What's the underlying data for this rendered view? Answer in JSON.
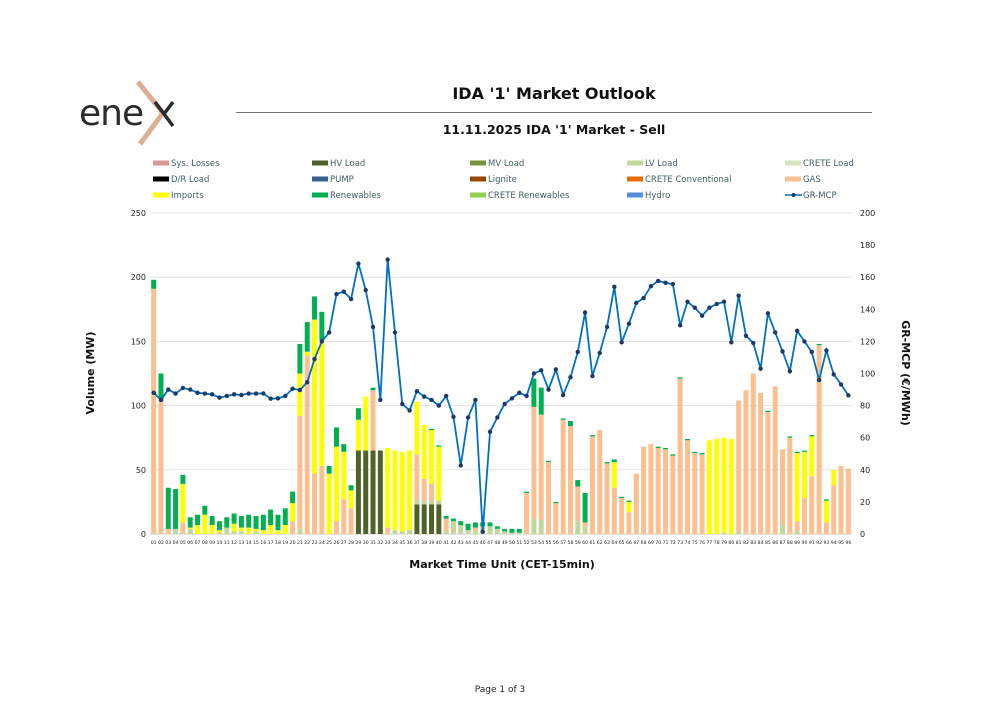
{
  "header": {
    "logo_text": "enex",
    "title": "IDA '1' Market Outlook",
    "subtitle": "11.11.2025  IDA '1' Market - Sell"
  },
  "footer": {
    "page": "Page 1 of 3"
  },
  "chart_data": {
    "type": "bar",
    "stacked": true,
    "xlabel": "Market Time Unit (CET-15min)",
    "ylabel": "Volume (MW)",
    "y2label": "GR-MCP (€/MWh)",
    "ylim": [
      0,
      250
    ],
    "y2lim": [
      0,
      200
    ],
    "yticks": [
      "0",
      "50",
      "100",
      "150",
      "200",
      "250"
    ],
    "y2ticks": [
      "0",
      "20",
      "40",
      "60",
      "80",
      "100",
      "120",
      "140",
      "160",
      "180",
      "200"
    ],
    "grid": true,
    "legend_position": "top",
    "categories": [
      "01",
      "02",
      "03",
      "04",
      "05",
      "06",
      "07",
      "08",
      "09",
      "10",
      "11",
      "12",
      "13",
      "14",
      "15",
      "16",
      "17",
      "18",
      "19",
      "20",
      "21",
      "22",
      "23",
      "24",
      "25",
      "26",
      "27",
      "28",
      "29",
      "30",
      "31",
      "32",
      "33",
      "34",
      "35",
      "36",
      "37",
      "38",
      "39",
      "40",
      "41",
      "42",
      "43",
      "44",
      "45",
      "46",
      "47",
      "48",
      "49",
      "50",
      "51",
      "52",
      "53",
      "54",
      "55",
      "56",
      "57",
      "58",
      "59",
      "60",
      "61",
      "62",
      "63",
      "64",
      "65",
      "66",
      "67",
      "68",
      "69",
      "70",
      "71",
      "72",
      "73",
      "74",
      "75",
      "76",
      "77",
      "78",
      "79",
      "80",
      "81",
      "82",
      "83",
      "84",
      "85",
      "86",
      "87",
      "88",
      "89",
      "90",
      "91",
      "92",
      "93",
      "94",
      "95",
      "96"
    ],
    "legend": [
      {
        "name": "Sys. Losses",
        "color": "#d99694"
      },
      {
        "name": "HV Load",
        "color": "#4f6228"
      },
      {
        "name": "MV Load",
        "color": "#77933c"
      },
      {
        "name": "LV Load",
        "color": "#c3d69b"
      },
      {
        "name": "CRETE Load",
        "color": "#d7e4bd"
      },
      {
        "name": "D/R Load",
        "color": "#000000"
      },
      {
        "name": "PUMP",
        "color": "#376092"
      },
      {
        "name": "Lignite",
        "color": "#974806"
      },
      {
        "name": "CRETE Conventional",
        "color": "#e46c0a"
      },
      {
        "name": "GAS",
        "color": "#fac090"
      },
      {
        "name": "Imports",
        "color": "#ffff00"
      },
      {
        "name": "Renewables",
        "color": "#00b050"
      },
      {
        "name": "CRETE Renewables",
        "color": "#92d050"
      },
      {
        "name": "Hydro",
        "color": "#558ed5"
      },
      {
        "name": "GR-MCP",
        "color": "#0070c0",
        "line": true
      }
    ],
    "series": [
      {
        "name": "HV Load",
        "color": "#4f6228",
        "values": [
          0,
          0,
          0,
          0,
          0,
          0,
          0,
          0,
          0,
          0,
          0,
          0,
          0,
          0,
          0,
          0,
          0,
          0,
          0,
          0,
          0,
          0,
          0,
          0,
          0,
          0,
          0,
          0,
          65,
          65,
          65,
          65,
          0,
          0,
          0,
          0,
          23,
          23,
          23,
          23,
          0,
          0,
          0,
          0,
          0,
          0,
          0,
          0,
          0,
          0,
          0,
          0,
          0,
          0,
          0,
          0,
          0,
          0,
          0,
          0,
          0,
          0,
          0,
          0,
          0,
          0,
          0,
          0,
          0,
          0,
          0,
          0,
          0,
          0,
          0,
          0,
          0,
          0,
          0,
          0,
          0,
          0,
          0,
          0,
          0,
          0,
          0,
          0,
          0,
          0,
          0,
          0,
          0,
          0,
          0,
          0
        ]
      },
      {
        "name": "LV Load",
        "color": "#c3d69b",
        "values": [
          1,
          0,
          0,
          4,
          1,
          4,
          0,
          0,
          0,
          0,
          5,
          2,
          2,
          0,
          2,
          0,
          0,
          0,
          0,
          0,
          4,
          0,
          0,
          0,
          0,
          0,
          0,
          0,
          0,
          0,
          0,
          0,
          0,
          3,
          2,
          3,
          4,
          3,
          3,
          3,
          2,
          10,
          7,
          3,
          2,
          6,
          6,
          4,
          2,
          1,
          1,
          0,
          12,
          11,
          0,
          0,
          0,
          0,
          10,
          6,
          0,
          0,
          0,
          0,
          0,
          0,
          0,
          0,
          0,
          0,
          0,
          0,
          0,
          0,
          0,
          0,
          0,
          0,
          1,
          0,
          2,
          0,
          0,
          0,
          0,
          0,
          7,
          0,
          2,
          0,
          0,
          0,
          0,
          0,
          0,
          0
        ]
      },
      {
        "name": "GAS",
        "color": "#fac090",
        "values": [
          190,
          105,
          4,
          0,
          8,
          0,
          0,
          0,
          0,
          1,
          0,
          0,
          0,
          0,
          0,
          0,
          0,
          0,
          0,
          10,
          88,
          139,
          47,
          53,
          0,
          10,
          27,
          20,
          0,
          0,
          47,
          0,
          5,
          0,
          0,
          0,
          35,
          17,
          13,
          0,
          10,
          0,
          0,
          0,
          3,
          0,
          0,
          0,
          0,
          0,
          0,
          32,
          87,
          82,
          56,
          24,
          89,
          84,
          27,
          3,
          76,
          81,
          55,
          36,
          28,
          17,
          47,
          68,
          70,
          67,
          66,
          61,
          121,
          73,
          63,
          62,
          0,
          0,
          0,
          0,
          102,
          112,
          125,
          110,
          95,
          115,
          59,
          75,
          8,
          28,
          45,
          147,
          9,
          38,
          53,
          51
        ]
      },
      {
        "name": "Imports",
        "color": "#ffff00",
        "values": [
          0,
          0,
          0,
          0,
          30,
          1,
          7,
          15,
          7,
          2,
          0,
          6,
          3,
          5,
          2,
          3,
          7,
          3,
          7,
          14,
          33,
          3,
          120,
          98,
          47,
          58,
          37,
          14,
          24,
          42,
          0,
          0,
          62,
          62,
          62,
          62,
          41,
          42,
          42,
          42,
          0,
          0,
          0,
          0,
          0,
          0,
          0,
          0,
          0,
          0,
          0,
          0,
          0,
          0,
          0,
          0,
          0,
          0,
          0,
          0,
          0,
          0,
          0,
          20,
          0,
          8,
          0,
          0,
          0,
          0,
          0,
          0,
          0,
          0,
          0,
          0,
          73,
          74,
          74,
          74,
          0,
          0,
          0,
          0,
          0,
          0,
          0,
          0,
          53,
          36,
          31,
          0,
          17,
          12,
          0,
          0
        ]
      },
      {
        "name": "Renewables",
        "color": "#00b050",
        "values": [
          7,
          20,
          32,
          31,
          7,
          8,
          8,
          7,
          7,
          7,
          8,
          8,
          9,
          10,
          10,
          12,
          12,
          12,
          13,
          9,
          23,
          23,
          18,
          22,
          6,
          15,
          6,
          4,
          9,
          0,
          2,
          0,
          0,
          0,
          0,
          0,
          0,
          0,
          1,
          1,
          2,
          2,
          3,
          5,
          4,
          3,
          3,
          2,
          2,
          3,
          3,
          1,
          22,
          21,
          1,
          1,
          1,
          4,
          5,
          23,
          1,
          0,
          1,
          2,
          1,
          1,
          0,
          0,
          0,
          1,
          1,
          1,
          1,
          1,
          1,
          1,
          0,
          0,
          0,
          0,
          0,
          0,
          0,
          0,
          1,
          0,
          0,
          1,
          1,
          1,
          1,
          1,
          1,
          0,
          0,
          0
        ]
      }
    ],
    "line": {
      "name": "GR-MCP",
      "axis": "right",
      "color": "#0070c0",
      "marker_color": "#1f3864",
      "values": [
        88,
        83.5,
        90,
        87.5,
        91,
        90,
        88,
        87.5,
        87,
        85,
        86,
        87,
        86.6,
        87.5,
        87.5,
        87.6,
        84.3,
        84.5,
        86,
        90.5,
        89.7,
        94.6,
        109,
        120,
        125.6,
        149.5,
        151,
        146.4,
        168.5,
        152,
        129,
        83.5,
        171,
        125.6,
        81,
        77,
        89,
        85.6,
        83.5,
        80,
        86,
        73,
        42.7,
        72.6,
        83.5,
        1.4,
        63.7,
        72.6,
        81,
        84.5,
        88,
        86,
        100,
        102,
        90,
        102.5,
        86.6,
        97.7,
        113.4,
        138,
        98.4,
        112.8,
        129,
        154,
        119.4,
        131,
        144,
        147,
        154.4,
        157.7,
        156.5,
        155.7,
        130,
        144.7,
        141,
        136,
        141,
        143.3,
        144.7,
        119.4,
        148.5,
        123.5,
        119,
        103,
        137.5,
        125.6,
        113.8,
        101.4,
        126.6,
        120,
        113.4,
        95.9,
        114.4,
        99.4,
        93.2,
        86.4
      ]
    }
  }
}
